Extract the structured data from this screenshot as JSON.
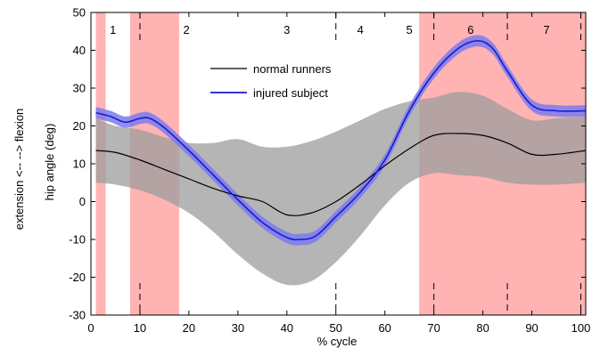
{
  "chart_data": {
    "type": "line",
    "title": "",
    "xlabel": "% cycle",
    "ylabel": "hip angle (deg)",
    "ylabel_outer": "extension <-- --> flexion",
    "xlim": [
      0,
      101
    ],
    "ylim": [
      -30,
      50
    ],
    "x_ticks": [
      0,
      10,
      20,
      30,
      40,
      50,
      60,
      70,
      80,
      90,
      100
    ],
    "y_ticks": [
      -30,
      -20,
      -10,
      0,
      10,
      20,
      30,
      40,
      50
    ],
    "legend_position": "top-center",
    "grid": false,
    "highlight_regions": [
      [
        1,
        3
      ],
      [
        8,
        18
      ],
      [
        67,
        101
      ]
    ],
    "phase_boundaries": [
      10,
      50,
      70,
      85,
      100
    ],
    "phase_labels": [
      {
        "label": "1",
        "x": 4.5
      },
      {
        "label": "2",
        "x": 19.5
      },
      {
        "label": "3",
        "x": 40
      },
      {
        "label": "4",
        "x": 55
      },
      {
        "label": "5",
        "x": 65
      },
      {
        "label": "6",
        "x": 77.5
      },
      {
        "label": "7",
        "x": 93
      }
    ],
    "series": [
      {
        "name": "normal runners",
        "color": "#000000",
        "band_color": "#9c9c9c",
        "x": [
          1,
          5,
          10,
          15,
          20,
          25,
          30,
          35,
          40,
          45,
          50,
          55,
          60,
          65,
          70,
          75,
          80,
          85,
          90,
          95,
          101
        ],
        "values": [
          13.5,
          13,
          11,
          8.5,
          6,
          3.5,
          1.5,
          0,
          -3.5,
          -3,
          0,
          4.5,
          9.5,
          14,
          17.5,
          18,
          17.5,
          15.5,
          12.5,
          12.5,
          13.5
        ],
        "band_upper": [
          22,
          20,
          19,
          17,
          15.5,
          15.5,
          16.5,
          14.5,
          14.5,
          16,
          18.5,
          21.5,
          24.5,
          26.5,
          27.5,
          29,
          28,
          24.5,
          21.5,
          22,
          22.5
        ],
        "band_lower": [
          5,
          4.5,
          3,
          0.5,
          -3,
          -8,
          -14,
          -19,
          -22,
          -21,
          -16,
          -9,
          -1,
          5,
          7.5,
          7,
          6.5,
          5,
          4.5,
          4.5,
          5
        ]
      },
      {
        "name": "injured subject",
        "color": "#1a1acc",
        "band_color": "#7b7bee",
        "x": [
          1,
          4,
          7,
          10,
          12,
          15,
          20,
          25,
          30,
          35,
          40,
          43,
          46,
          50,
          55,
          60,
          65,
          70,
          75,
          79,
          82,
          85,
          90,
          95,
          101
        ],
        "values": [
          23.5,
          22.5,
          21,
          22,
          22,
          19.5,
          13.5,
          7,
          0.5,
          -5.5,
          -9.5,
          -10,
          -9,
          -4,
          2.5,
          11,
          24,
          34,
          40.5,
          42.5,
          40.5,
          34.5,
          25.5,
          24,
          24
        ],
        "band_half_width": 1.5
      }
    ]
  }
}
